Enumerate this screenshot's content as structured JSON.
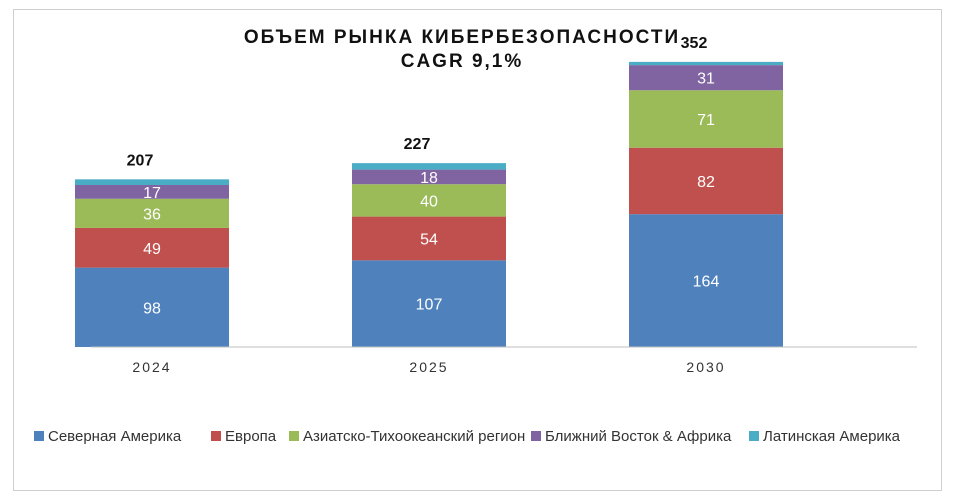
{
  "chart_data": {
    "type": "bar",
    "stacked": true,
    "title": "ОБЪЕМ РЫНКА КИБЕРБЕЗОПАСНОСТИ",
    "subtitle": "CAGR 9,1%",
    "xlabel": "",
    "ylabel": "",
    "categories": [
      "2024",
      "2025",
      "2030"
    ],
    "ylim": [
      0,
      360
    ],
    "grid": false,
    "legend_position": "bottom",
    "totals": [
      207,
      227,
      352
    ],
    "series": [
      {
        "name": "Северная Америка",
        "color": "#4f81bd",
        "values": [
          98,
          107,
          164
        ]
      },
      {
        "name": "Европа",
        "color": "#c0504d",
        "values": [
          49,
          54,
          82
        ]
      },
      {
        "name": "Азиатско-Тихоокеанский регион",
        "color": "#9bbb59",
        "values": [
          36,
          40,
          71
        ]
      },
      {
        "name": "Ближний Восток & Африка",
        "color": "#8064a2",
        "values": [
          17,
          18,
          31
        ]
      },
      {
        "name": "Латинская Америка",
        "color": "#4bacc6",
        "values": [
          7,
          8,
          4
        ]
      }
    ]
  }
}
